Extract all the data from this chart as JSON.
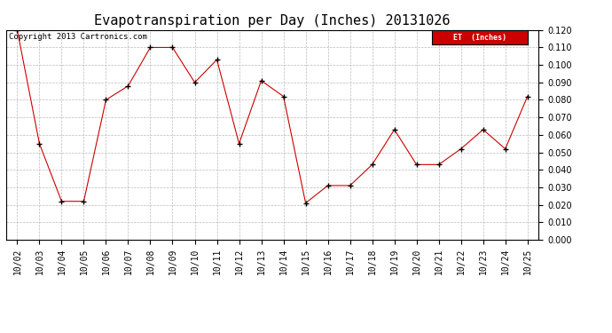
{
  "title": "Evapotranspiration per Day (Inches) 20131026",
  "copyright_text": "Copyright 2013 Cartronics.com",
  "legend_label": "ET  (Inches)",
  "x_labels": [
    "10/02",
    "10/03",
    "10/04",
    "10/05",
    "10/06",
    "10/07",
    "10/08",
    "10/09",
    "10/10",
    "10/11",
    "10/12",
    "10/13",
    "10/14",
    "10/15",
    "10/16",
    "10/17",
    "10/18",
    "10/19",
    "10/20",
    "10/21",
    "10/22",
    "10/23",
    "10/24",
    "10/25"
  ],
  "y_values": [
    0.12,
    0.055,
    0.022,
    0.022,
    0.08,
    0.088,
    0.11,
    0.11,
    0.09,
    0.103,
    0.055,
    0.091,
    0.082,
    0.021,
    0.031,
    0.031,
    0.043,
    0.063,
    0.043,
    0.043,
    0.052,
    0.063,
    0.052,
    0.082
  ],
  "ylim": [
    0.0,
    0.12
  ],
  "ytick_step": 0.01,
  "line_color": "#cc0000",
  "marker": "+",
  "marker_color": "#000000",
  "grid_color": "#bbbbbb",
  "background_color": "#ffffff",
  "legend_bg": "#cc0000",
  "legend_text_color": "#ffffff",
  "title_fontsize": 11,
  "tick_fontsize": 7,
  "copyright_fontsize": 6.5
}
